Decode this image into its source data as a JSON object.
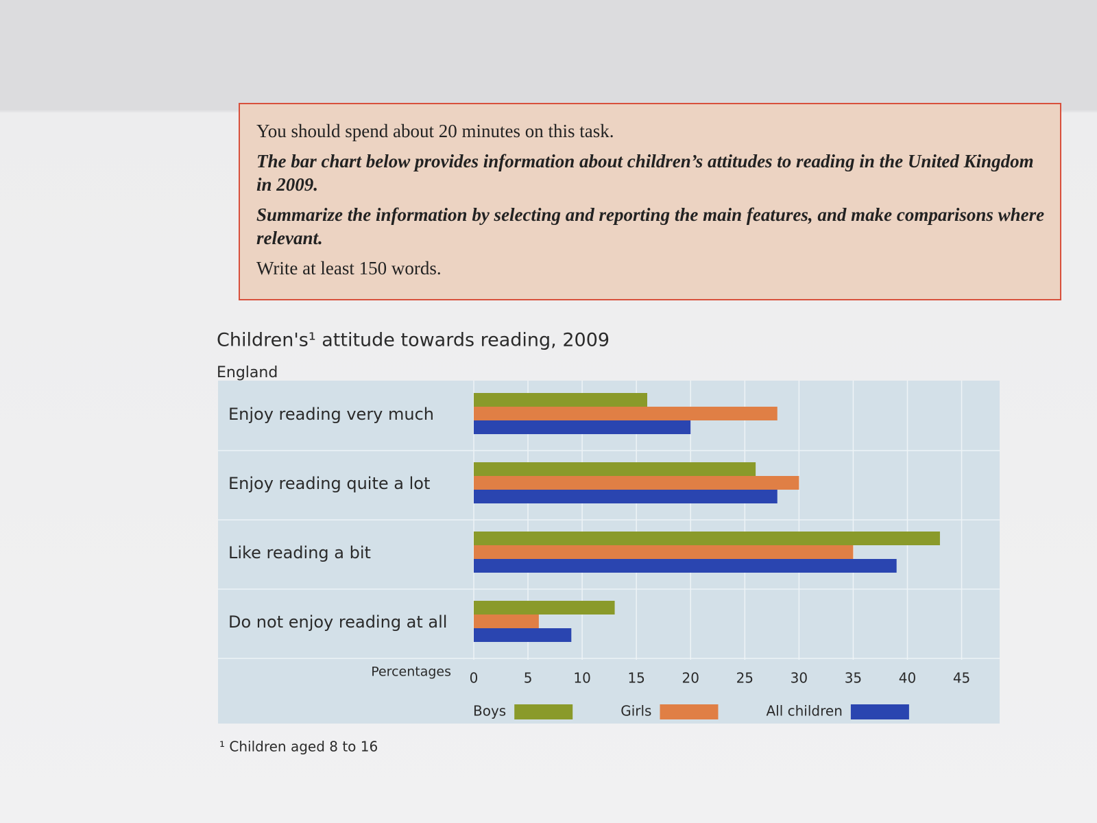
{
  "task": {
    "paragraphs": [
      "You should spend about 20 minutes on this task.",
      "The bar chart below provides information about children’s attitudes to reading in the United Kingdom in 2009.",
      "Summarize the information by selecting and reporting the main features, and make comparisons where relevant.",
      "Write at least 150 words."
    ]
  },
  "chart_data": {
    "type": "hbar",
    "title": "Children's¹ attitude towards reading, 2009",
    "subtitle": "England",
    "x_label": "Percentages",
    "footnote": "¹ Children aged 8 to 16",
    "categories": [
      "Enjoy reading very much",
      "Enjoy reading quite a lot",
      "Like reading a bit",
      "Do not enjoy reading at all"
    ],
    "series": [
      {
        "name": "Boys",
        "color": "#8a9a2a",
        "values": [
          16,
          26,
          43,
          13
        ]
      },
      {
        "name": "Girls",
        "color": "#e07f45",
        "values": [
          28,
          30,
          35,
          6
        ]
      },
      {
        "name": "All children",
        "color": "#2a45b0",
        "values": [
          20,
          28,
          39,
          9
        ]
      }
    ],
    "xlim": [
      0,
      48
    ],
    "xticks": [
      0,
      5,
      10,
      15,
      20,
      25,
      30,
      35,
      40,
      45
    ],
    "grid": true,
    "legend": "bottom"
  }
}
